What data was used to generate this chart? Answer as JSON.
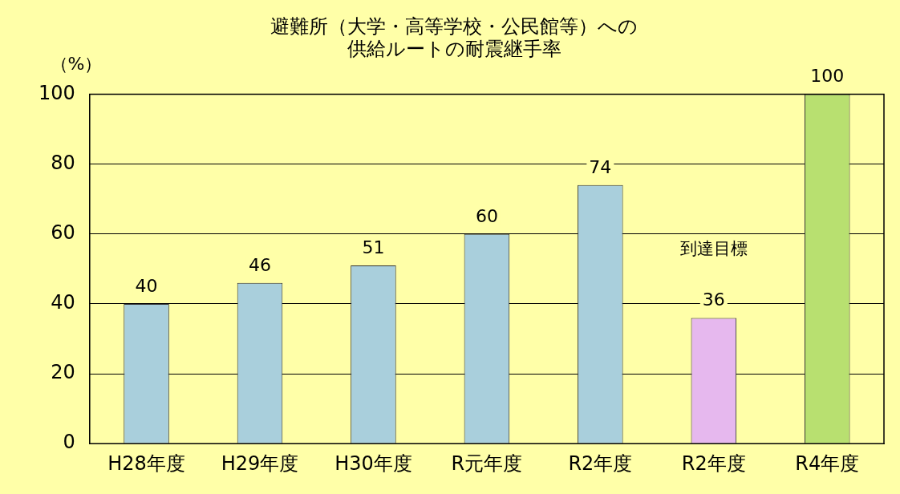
{
  "chart_data": {
    "type": "bar",
    "title": "避難所（大学・高等学校・公民館等）への供給ルートの耐震継手率",
    "ylabel": "（%）",
    "categories": [
      "H28年度",
      "H29年度",
      "H30年度",
      "R元年度",
      "R2年度",
      "R2年度",
      "R4年度"
    ],
    "values": [
      40,
      46,
      51,
      60,
      74,
      36,
      100
    ],
    "colors": [
      "#a9cfdc",
      "#a9cfdc",
      "#a9cfdc",
      "#a9cfdc",
      "#a9cfdc",
      "#e6b8ee",
      "#b8e070"
    ],
    "ylim": [
      0,
      100
    ],
    "yticks": [
      0,
      20,
      40,
      60,
      80,
      100
    ],
    "grid": "y",
    "data_labels": true,
    "legend": false,
    "annotations": [
      "到達目標"
    ]
  }
}
